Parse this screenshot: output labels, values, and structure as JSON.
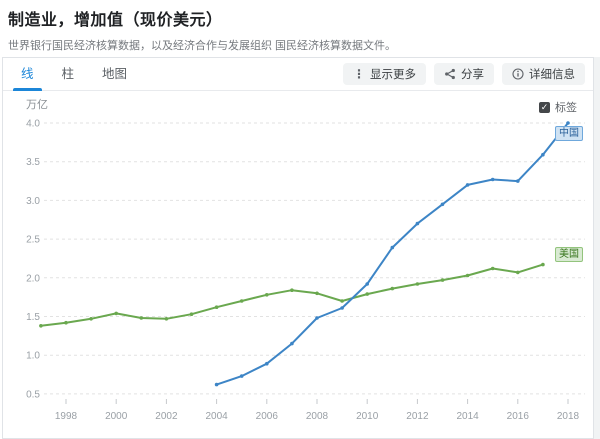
{
  "header": {
    "title": "制造业，增加值（现价美元）",
    "subtitle": "世界银行国民经济核算数据，以及经济合作与发展组织 国民经济核算数据文件。"
  },
  "tabs": [
    {
      "label": "线",
      "active": true
    },
    {
      "label": "柱",
      "active": false
    },
    {
      "label": "地图",
      "active": false
    }
  ],
  "toolbar": {
    "more_label": "显示更多",
    "share_label": "分享",
    "details_label": "详细信息"
  },
  "controls": {
    "unit_label": "万亿",
    "labels_checkbox_label": "标签",
    "labels_checkbox_checked": true
  },
  "colors": {
    "accent_blue": "#1c86d8",
    "china_line": "#3d85c6",
    "usa_line": "#6aa84f",
    "grid": "#e2e2e2",
    "axis_text": "#9aa0a6"
  },
  "chart_data": {
    "type": "line",
    "title": "制造业，增加值（现价美元）",
    "ylabel": "万亿",
    "ylim": [
      0.5,
      4.0
    ],
    "y_ticks": [
      4.0,
      3.5,
      3.0,
      2.5,
      2.0,
      1.5,
      1.0,
      0.5
    ],
    "x_ticks": [
      1998,
      2000,
      2002,
      2004,
      2006,
      2008,
      2010,
      2012,
      2014,
      2016,
      2018
    ],
    "xlim": [
      1996.6,
      2018.8
    ],
    "grid": "horizontal-dashed",
    "legend_position": "line-end-labels",
    "series": [
      {
        "name": "中国",
        "color": "#3d85c6",
        "label_bg": "#cfe2f3",
        "label_border": "#6fa8dc",
        "start_year": 2004,
        "end_year": 2018,
        "values": [
          0.62,
          0.73,
          0.89,
          1.15,
          1.48,
          1.61,
          1.92,
          2.39,
          2.7,
          2.95,
          3.2,
          3.27,
          3.25,
          3.59,
          4.0
        ]
      },
      {
        "name": "美国",
        "color": "#6aa84f",
        "label_bg": "#d9ead3",
        "label_border": "#93c47d",
        "start_year": 1997,
        "end_year": 2017,
        "values": [
          1.38,
          1.42,
          1.47,
          1.54,
          1.48,
          1.47,
          1.53,
          1.62,
          1.7,
          1.78,
          1.84,
          1.8,
          1.7,
          1.79,
          1.86,
          1.92,
          1.97,
          2.03,
          2.12,
          2.07,
          2.17
        ]
      }
    ]
  }
}
